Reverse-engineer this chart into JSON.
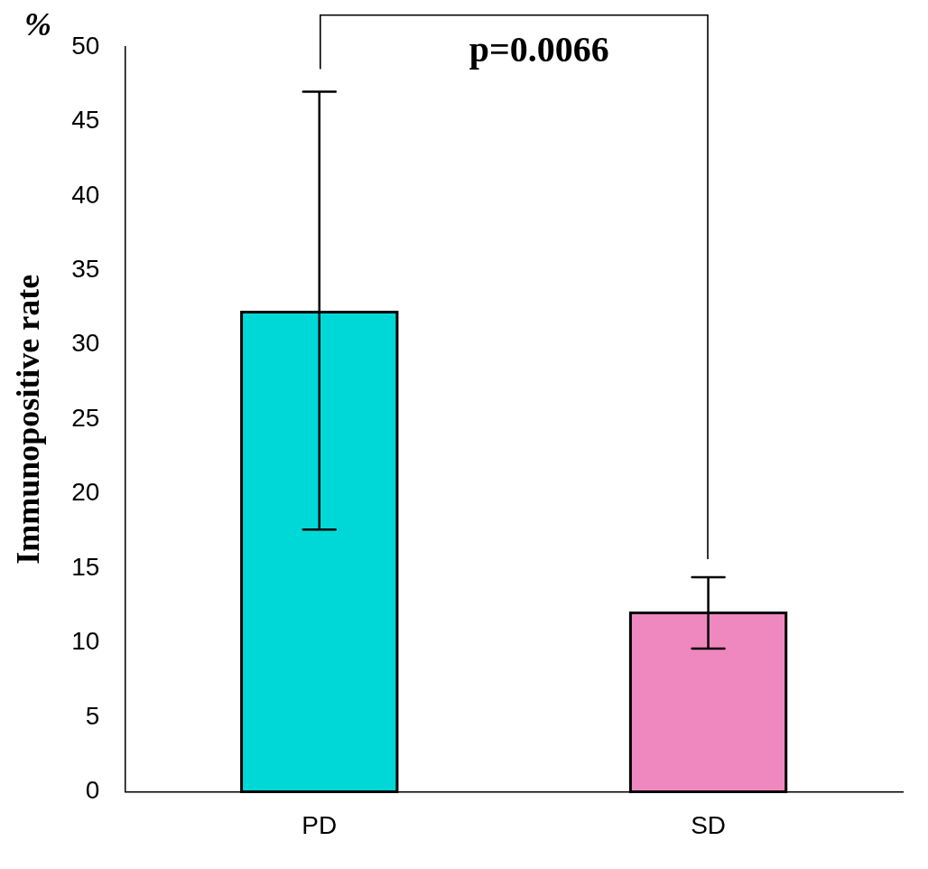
{
  "chart_data": {
    "type": "bar",
    "ylabel": "Immunopositive rate",
    "categories": [
      "PD",
      "SD"
    ],
    "values": [
      32.2,
      12.0
    ],
    "colors": [
      "#00d8d8",
      "#f088c0"
    ],
    "errors": [
      [
        17.6,
        47.0
      ],
      [
        9.6,
        14.4
      ]
    ],
    "ylim": [
      0,
      50
    ],
    "yticks": [
      0,
      5,
      10,
      15,
      20,
      25,
      30,
      35,
      40,
      45,
      50
    ],
    "grid": false,
    "legend": false,
    "annotations": [
      "%",
      "p=0.0066"
    ]
  }
}
